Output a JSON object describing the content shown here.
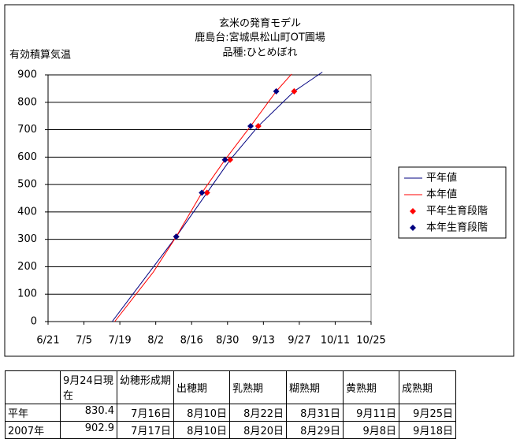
{
  "chart_data": {
    "type": "line",
    "title": [
      "玄米の発育モデル",
      "鹿島台:宮城県松山町OT圃場",
      "品種:ひとめぼれ"
    ],
    "y_label": "有効積算気温",
    "series": [
      {
        "name": "平年値",
        "kind": "line",
        "color": "#000080",
        "x": [
          "7/16",
          "8/10",
          "8/22",
          "8/31",
          "9/11",
          "9/25",
          "10/6"
        ],
        "values": [
          0,
          310,
          470,
          590,
          713,
          840,
          910
        ]
      },
      {
        "name": "本年値",
        "kind": "line",
        "color": "#ff0000",
        "x": [
          "7/17",
          "8/1",
          "8/10",
          "8/20",
          "8/29",
          "9/8",
          "9/18",
          "9/24"
        ],
        "values": [
          0,
          180,
          310,
          470,
          590,
          713,
          840,
          903
        ]
      },
      {
        "name": "平年生育段階",
        "kind": "scatter",
        "color": "#ff0000",
        "x": [
          "8/10",
          "8/22",
          "8/31",
          "9/11",
          "9/25"
        ],
        "values": [
          310,
          470,
          590,
          713,
          840
        ]
      },
      {
        "name": "本年生育段階",
        "kind": "scatter",
        "color": "#000080",
        "x": [
          "8/10",
          "8/20",
          "8/29",
          "9/8",
          "9/18"
        ],
        "values": [
          310,
          470,
          590,
          713,
          840
        ]
      }
    ],
    "xlim": [
      "6/21",
      "10/25"
    ],
    "xticks": [
      "6/21",
      "7/5",
      "7/19",
      "8/2",
      "8/16",
      "8/30",
      "9/13",
      "9/27",
      "10/11",
      "10/25"
    ],
    "ylim": [
      0,
      900
    ],
    "yticks": [
      0,
      100,
      200,
      300,
      400,
      500,
      600,
      700,
      800,
      900
    ],
    "grid": true
  },
  "table": {
    "header": [
      "",
      "9月24日現在",
      "幼穂形成期",
      "出穂期",
      "乳熟期",
      "糊熟期",
      "黄熟期",
      "成熟期"
    ],
    "rows": [
      [
        "平年",
        830.4,
        "7月16日",
        "8月10日",
        "8月22日",
        "8月31日",
        "9月11日",
        "9月25日"
      ],
      [
        "2007年",
        902.9,
        "7月17日",
        "8月10日",
        "8月20日",
        "8月29日",
        "9月8日",
        "9月18日"
      ]
    ]
  }
}
